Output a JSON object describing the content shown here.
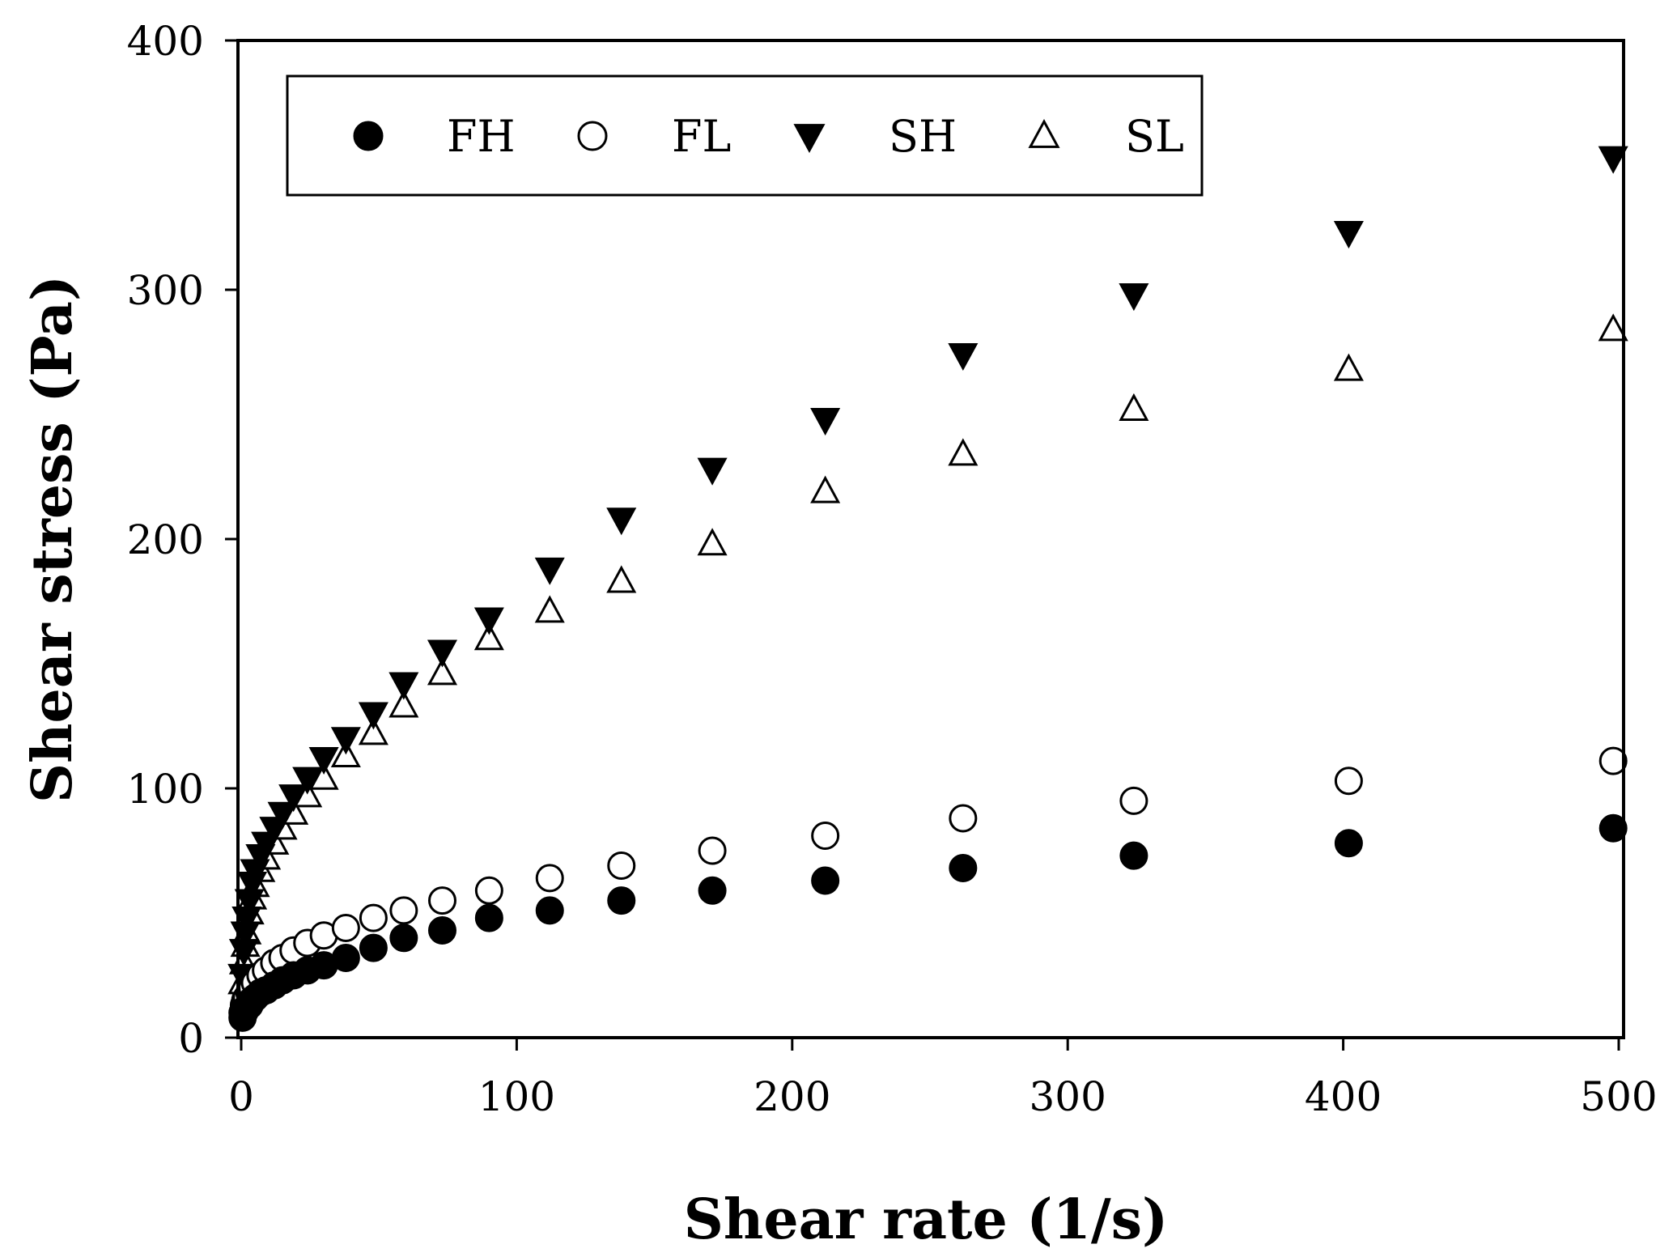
{
  "chart_data": {
    "type": "scatter",
    "title": "",
    "xlabel": "Shear rate (1/s)",
    "ylabel": "Shear stress (Pa)",
    "xlim": [
      0,
      500
    ],
    "ylim": [
      0,
      400
    ],
    "xticks": [
      0,
      100,
      200,
      300,
      400,
      500
    ],
    "yticks": [
      0,
      100,
      200,
      300,
      400
    ],
    "xtick_labels": [
      "0",
      "100",
      "200",
      "300",
      "400",
      "500"
    ],
    "ytick_labels": [
      "0",
      "100",
      "200",
      "300",
      "400"
    ],
    "grid": false,
    "legend_position": "top-left",
    "series": [
      {
        "name": "FH",
        "marker": "filled-circle",
        "x": [
          0.5,
          1,
          1.5,
          2,
          3,
          4,
          5,
          7,
          9,
          12,
          15,
          19,
          24,
          30,
          38,
          48,
          59,
          73,
          90,
          112,
          138,
          171,
          212,
          262,
          324,
          402,
          498
        ],
        "y": [
          8,
          10,
          11,
          12,
          13,
          15,
          16,
          18,
          19,
          21,
          23,
          25,
          27,
          29,
          32,
          36,
          40,
          43,
          48,
          51,
          55,
          59,
          63,
          68,
          73,
          78,
          84
        ]
      },
      {
        "name": "FL",
        "marker": "open-circle",
        "x": [
          0.5,
          1,
          1.5,
          2,
          3,
          4,
          5,
          7,
          9,
          12,
          15,
          19,
          24,
          30,
          38,
          48,
          59,
          73,
          90,
          112,
          138,
          171,
          212,
          262,
          324,
          402,
          498
        ],
        "y": [
          10,
          13,
          15,
          16,
          18,
          20,
          22,
          25,
          27,
          30,
          32,
          35,
          38,
          41,
          44,
          48,
          51,
          55,
          59,
          64,
          69,
          75,
          81,
          88,
          95,
          103,
          111
        ]
      },
      {
        "name": "SH",
        "marker": "filled-triangle-down",
        "x": [
          0.5,
          1,
          1.5,
          2,
          3,
          4,
          5,
          7,
          9,
          12,
          15,
          19,
          24,
          30,
          38,
          48,
          59,
          73,
          90,
          112,
          138,
          171,
          212,
          262,
          324,
          402,
          498
        ],
        "y": [
          25,
          35,
          42,
          48,
          55,
          62,
          67,
          73,
          78,
          84,
          90,
          97,
          104,
          112,
          120,
          130,
          142,
          155,
          168,
          188,
          208,
          228,
          248,
          274,
          298,
          323,
          353
        ]
      },
      {
        "name": "SL",
        "marker": "open-triangle-up",
        "x": [
          0.5,
          1,
          1.5,
          2,
          3,
          4,
          5,
          7,
          9,
          12,
          15,
          19,
          24,
          30,
          38,
          48,
          59,
          73,
          90,
          112,
          138,
          171,
          212,
          262,
          324,
          402,
          498
        ],
        "y": [
          22,
          30,
          37,
          42,
          50,
          56,
          61,
          67,
          72,
          78,
          84,
          90,
          97,
          104,
          113,
          122,
          133,
          146,
          160,
          171,
          183,
          198,
          219,
          234,
          252,
          268,
          284
        ]
      }
    ]
  }
}
